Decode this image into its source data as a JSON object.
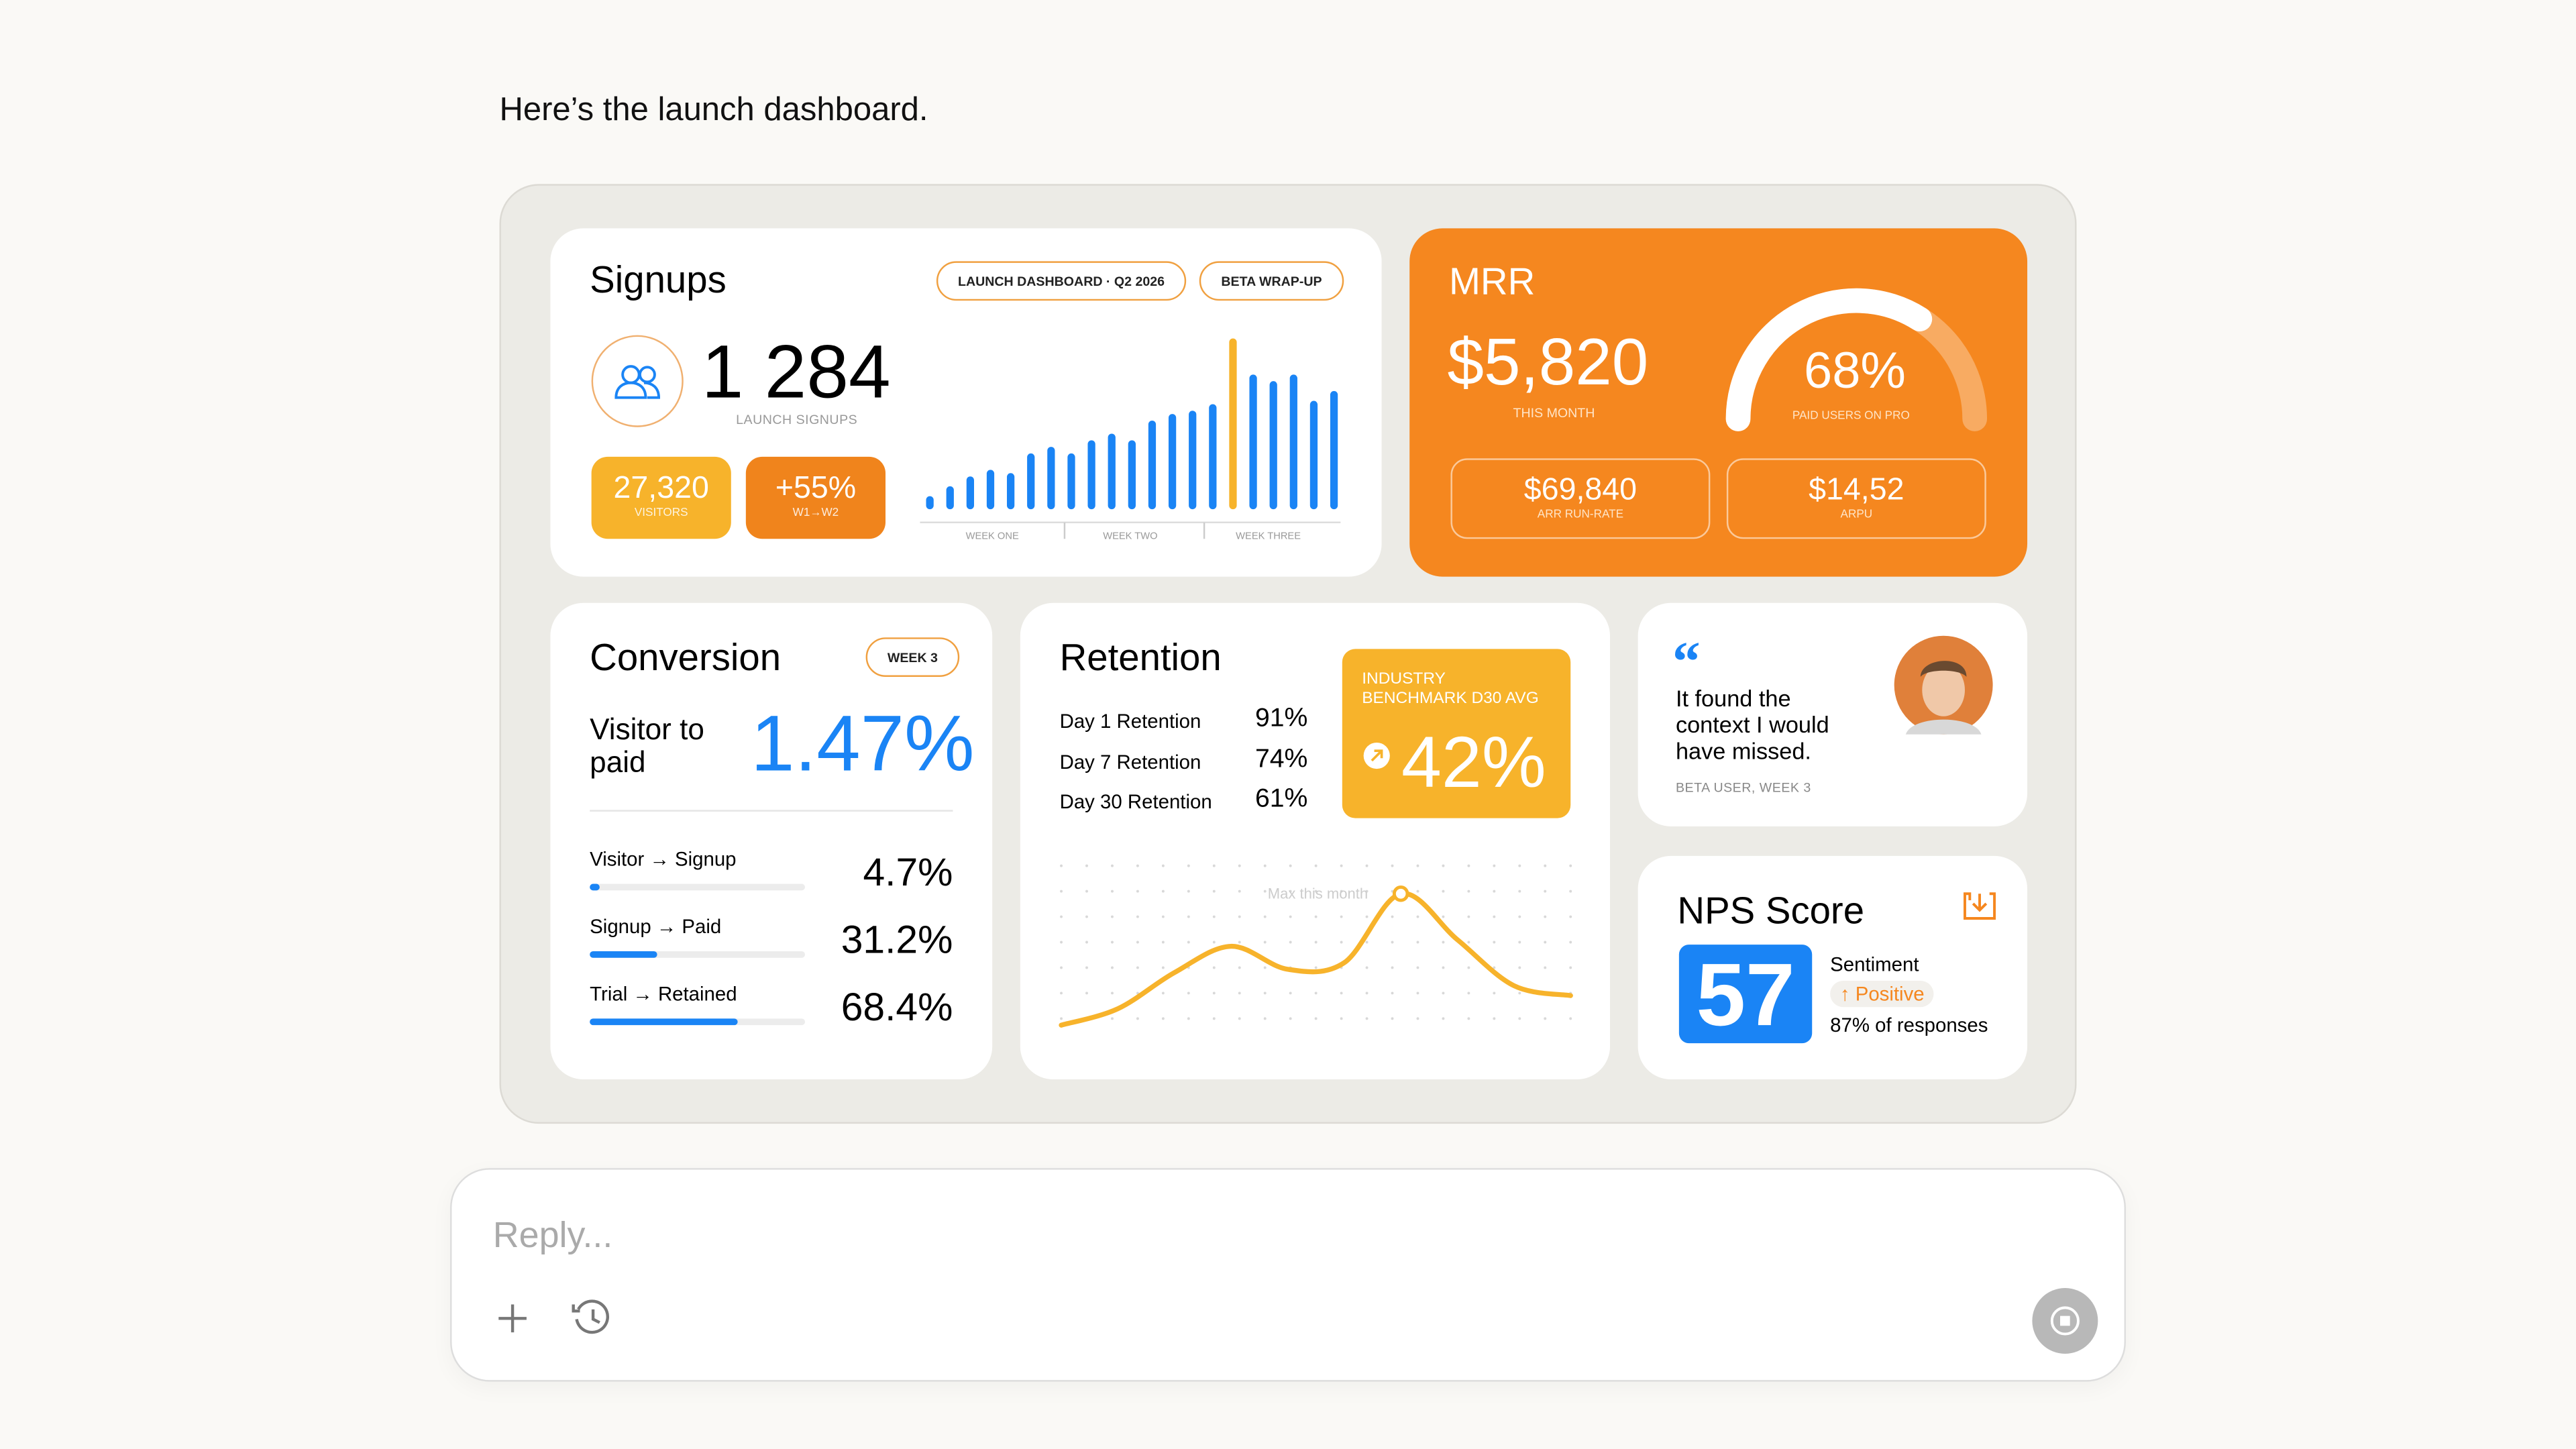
{
  "message": "Here’s the launch dashboard.",
  "signups": {
    "title": "Signups",
    "tags": [
      "LAUNCH DASHBOARD · Q2 2026",
      "BETA WRAP-UP"
    ],
    "count": "1 284",
    "count_label": "LAUNCH SIGNUPS",
    "visitors": {
      "value": "27,320",
      "label": "VISITORS"
    },
    "growth": {
      "value": "+55%",
      "label": "W1→W2"
    },
    "chart": {
      "type": "bar",
      "values": [
        8,
        14,
        20,
        24,
        22,
        34,
        38,
        34,
        42,
        46,
        42,
        54,
        58,
        60,
        64,
        104,
        82,
        78,
        82,
        66,
        72
      ],
      "ylim": [
        0,
        110
      ],
      "color": "#1a84f5",
      "highlight_color": "#f7b32b",
      "highlight_index": 15,
      "weeks": [
        "WEEK ONE",
        "WEEK TWO",
        "WEEK THREE"
      ]
    }
  },
  "mrr": {
    "title": "MRR",
    "amount": "$5,820",
    "amount_label": "THIS MONTH",
    "gauge": {
      "value": 68,
      "label": "68%",
      "caption": "PAID USERS ON PRO"
    },
    "arr": {
      "value": "$69,840",
      "label": "ARR RUN-RATE"
    },
    "arpu": {
      "value": "$14,52",
      "label": "ARPU"
    }
  },
  "conversion": {
    "title": "Conversion",
    "tag": "WEEK 3",
    "headline_label": "Visitor to paid",
    "headline": "1.47%",
    "steps": [
      {
        "name": "Visitor → Signup",
        "value": 4.7,
        "label": "4.7%"
      },
      {
        "name": "Signup → Paid",
        "value": 31.2,
        "label": "31.2%"
      },
      {
        "name": "Trial → Retained",
        "value": 68.4,
        "label": "68.4%"
      }
    ]
  },
  "retention": {
    "title": "Retention",
    "rows": [
      {
        "name": "Day 1 Retention",
        "value": "91%"
      },
      {
        "name": "Day 7 Retention",
        "value": "74%"
      },
      {
        "name": "Day 30 Retention",
        "value": "61%"
      }
    ],
    "benchmark": {
      "label": "INDUSTRY BENCHMARK D30 AVG",
      "value": "42%"
    },
    "chart": {
      "type": "line",
      "values": [
        6,
        16,
        38,
        54,
        40,
        44,
        86,
        58,
        30,
        24
      ],
      "ylim": [
        0,
        100
      ],
      "annotation": "Max this month",
      "annotation_index": 6,
      "color": "#f7b32b"
    }
  },
  "quote": {
    "text": "It found the context I would have missed.",
    "author": "BETA USER, WEEK 3"
  },
  "nps": {
    "title": "NPS Score",
    "score": "57",
    "sentiment_label": "Sentiment",
    "sentiment": "↑ Positive",
    "responses": "87% of responses"
  },
  "reply": {
    "placeholder": "Reply..."
  }
}
